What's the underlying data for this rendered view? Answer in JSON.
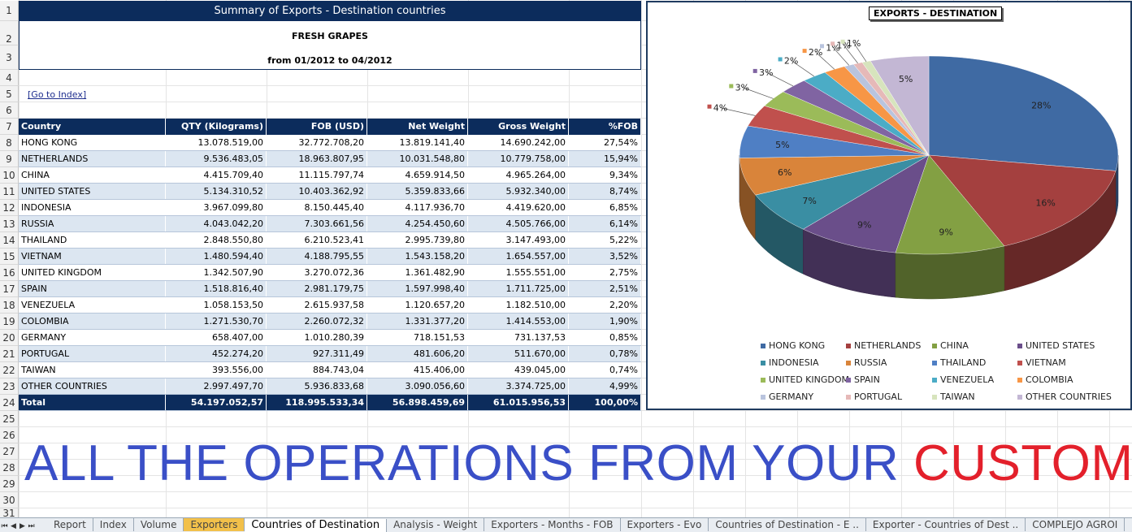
{
  "sheet": {
    "title": "Summary of Exports - Destination countries",
    "product": "FRESH GRAPES",
    "period": "from 01/2012 to 04/2012",
    "goto_link": "[Go to Index]",
    "row_numbers": [
      "1",
      "2",
      "3",
      "4",
      "5",
      "6",
      "7",
      "8",
      "9",
      "10",
      "11",
      "12",
      "13",
      "14",
      "15",
      "16",
      "17",
      "18",
      "19",
      "20",
      "21",
      "22",
      "23",
      "24",
      "25",
      "26",
      "27",
      "28",
      "29",
      "30",
      "31"
    ],
    "columns": [
      "Country",
      "QTY (Kilograms)",
      "FOB (USD)",
      "Net Weight",
      "Gross Weight",
      "%FOB"
    ],
    "rows": [
      [
        "HONG KONG",
        "13.078.519,00",
        "32.772.708,20",
        "13.819.141,40",
        "14.690.242,00",
        "27,54%"
      ],
      [
        "NETHERLANDS",
        "9.536.483,05",
        "18.963.807,95",
        "10.031.548,80",
        "10.779.758,00",
        "15,94%"
      ],
      [
        "CHINA",
        "4.415.709,40",
        "11.115.797,74",
        "4.659.914,50",
        "4.965.264,00",
        "9,34%"
      ],
      [
        "UNITED STATES",
        "5.134.310,52",
        "10.403.362,92",
        "5.359.833,66",
        "5.932.340,00",
        "8,74%"
      ],
      [
        "INDONESIA",
        "3.967.099,80",
        "8.150.445,40",
        "4.117.936,70",
        "4.419.620,00",
        "6,85%"
      ],
      [
        "RUSSIA",
        "4.043.042,20",
        "7.303.661,56",
        "4.254.450,60",
        "4.505.766,00",
        "6,14%"
      ],
      [
        "THAILAND",
        "2.848.550,80",
        "6.210.523,41",
        "2.995.739,80",
        "3.147.493,00",
        "5,22%"
      ],
      [
        "VIETNAM",
        "1.480.594,40",
        "4.188.795,55",
        "1.543.158,20",
        "1.654.557,00",
        "3,52%"
      ],
      [
        "UNITED KINGDOM",
        "1.342.507,90",
        "3.270.072,36",
        "1.361.482,90",
        "1.555.551,00",
        "2,75%"
      ],
      [
        "SPAIN",
        "1.518.816,40",
        "2.981.179,75",
        "1.597.998,40",
        "1.711.725,00",
        "2,51%"
      ],
      [
        "VENEZUELA",
        "1.058.153,50",
        "2.615.937,58",
        "1.120.657,20",
        "1.182.510,00",
        "2,20%"
      ],
      [
        "COLOMBIA",
        "1.271.530,70",
        "2.260.072,32",
        "1.331.377,20",
        "1.414.553,00",
        "1,90%"
      ],
      [
        "GERMANY",
        "658.407,00",
        "1.010.280,39",
        "718.151,53",
        "731.137,53",
        "0,85%"
      ],
      [
        "PORTUGAL",
        "452.274,20",
        "927.311,49",
        "481.606,20",
        "511.670,00",
        "0,78%"
      ],
      [
        "TAIWAN",
        "393.556,00",
        "884.743,04",
        "415.406,00",
        "439.045,00",
        "0,74%"
      ],
      [
        "OTHER COUNTRIES",
        "2.997.497,70",
        "5.936.833,68",
        "3.090.056,60",
        "3.374.725,00",
        "4,99%"
      ]
    ],
    "total": [
      "Total",
      "54.197.052,57",
      "118.995.533,34",
      "56.898.459,69",
      "61.015.956,53",
      "100,00%"
    ]
  },
  "chart_data": {
    "type": "pie",
    "title": "EXPORTS - DESTINATION",
    "categories": [
      "HONG KONG",
      "NETHERLANDS",
      "CHINA",
      "UNITED STATES",
      "INDONESIA",
      "RUSSIA",
      "THAILAND",
      "VIETNAM",
      "UNITED KINGDOM",
      "SPAIN",
      "VENEZUELA",
      "COLOMBIA",
      "GERMANY",
      "PORTUGAL",
      "TAIWAN",
      "OTHER COUNTRIES"
    ],
    "values": [
      27.54,
      15.94,
      9.34,
      8.74,
      6.85,
      6.14,
      5.22,
      3.52,
      2.75,
      2.51,
      2.2,
      1.9,
      0.85,
      0.78,
      0.74,
      4.99
    ],
    "labels": [
      "28%",
      "16%",
      "9%",
      "9%",
      "7%",
      "6%",
      "5%",
      "4%",
      "3%",
      "3%",
      "2%",
      "2%",
      "1%",
      "1%",
      "1%",
      "5%"
    ],
    "colors": [
      "#3f6aa3",
      "#a4403f",
      "#83a043",
      "#6a4e8a",
      "#3a8ea3",
      "#d9843a",
      "#4f7fc4",
      "#c0504d",
      "#9bbb59",
      "#8064a2",
      "#4bacc6",
      "#f79646",
      "#b9c4de",
      "#e6b9b8",
      "#d7e4bd",
      "#c3b7d4"
    ],
    "legend_position": "bottom"
  },
  "banner": {
    "part1": "ALL THE OPERATIONS FROM YOUR ",
    "part2": "CUSTOMERS"
  },
  "tabs": [
    "Report",
    "Index",
    "Volume",
    "Exporters",
    "Countries of Destination",
    "Analysis - Weight",
    "Exporters - Months - FOB",
    "Exporters - Evo",
    "Countries of Destination - E ..",
    "Exporter - Countries of Dest ..",
    "COMPLEJO AGROI"
  ],
  "active_tab": "Countries of Destination",
  "nav_buttons": [
    "⏮",
    "◀",
    "▶",
    "⏭"
  ]
}
